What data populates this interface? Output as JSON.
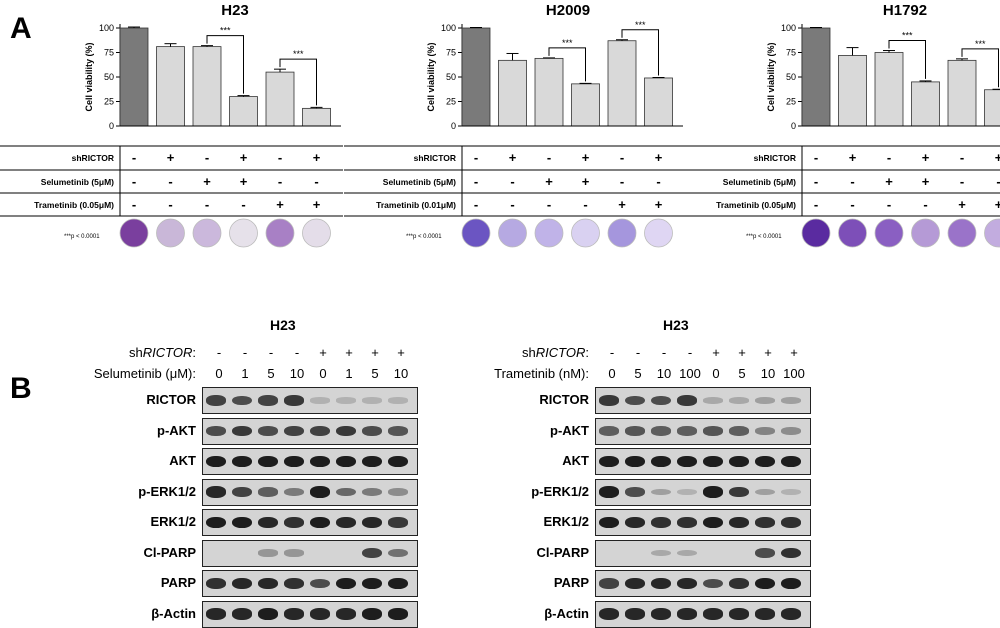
{
  "panel_a_label": "A",
  "panel_b_label": "B",
  "chart_data": [
    {
      "type": "bar",
      "title": "H23",
      "ylabel": "Cell viability (%)",
      "ylim": [
        0,
        100
      ],
      "yticks": [
        "0",
        "25",
        "50",
        "75",
        "100"
      ],
      "values": [
        100,
        81,
        81,
        30,
        55,
        18
      ],
      "errors": [
        1,
        3,
        1,
        1,
        3,
        1
      ],
      "bar_colors": [
        "#7a7a7a",
        "#d9d9d9",
        "#d9d9d9",
        "#d9d9d9",
        "#d9d9d9",
        "#d9d9d9"
      ],
      "significance": [
        {
          "from": 2,
          "to": 3,
          "label": "***"
        },
        {
          "from": 4,
          "to": 5,
          "label": "***"
        }
      ],
      "row_labels": [
        "shRICTOR",
        "Selumetinib (5μM)",
        "Trametinib (0.05μM)"
      ],
      "rows": [
        [
          "-",
          "+",
          "-",
          "+",
          "-",
          "+"
        ],
        [
          "-",
          "-",
          "+",
          "+",
          "-",
          "-"
        ],
        [
          "-",
          "-",
          "-",
          "-",
          "+",
          "+"
        ]
      ],
      "p_note": "***p < 0.0001",
      "well_colors": [
        "#7a3f9e",
        "#c9b7d8",
        "#cbb8dc",
        "#e6e1ea",
        "#a880c5",
        "#e4dde9"
      ]
    },
    {
      "type": "bar",
      "title": "H2009",
      "ylabel": "Cell viability (%)",
      "ylim": [
        0,
        100
      ],
      "yticks": [
        "0",
        "25",
        "50",
        "75",
        "100"
      ],
      "values": [
        100,
        67,
        69,
        43,
        87,
        49
      ],
      "errors": [
        0.5,
        7,
        0.5,
        0.5,
        1,
        0.5
      ],
      "bar_colors": [
        "#7a7a7a",
        "#d9d9d9",
        "#d9d9d9",
        "#d9d9d9",
        "#d9d9d9",
        "#d9d9d9"
      ],
      "significance": [
        {
          "from": 2,
          "to": 3,
          "label": "***"
        },
        {
          "from": 4,
          "to": 5,
          "label": "***"
        }
      ],
      "row_labels": [
        "shRICTOR",
        "Selumetinib (5μM)",
        "Trametinib (0.01μM)"
      ],
      "rows": [
        [
          "-",
          "+",
          "-",
          "+",
          "-",
          "+"
        ],
        [
          "-",
          "-",
          "+",
          "+",
          "-",
          "-"
        ],
        [
          "-",
          "-",
          "-",
          "-",
          "+",
          "+"
        ]
      ],
      "p_note": "***p < 0.0001",
      "well_colors": [
        "#6b55c2",
        "#b6a9e2",
        "#c0b3e8",
        "#d9d1f1",
        "#a596dd",
        "#dfd6f3"
      ]
    },
    {
      "type": "bar",
      "title": "H1792",
      "ylabel": "Cell viability (%)",
      "ylim": [
        0,
        100
      ],
      "yticks": [
        "0",
        "25",
        "50",
        "75",
        "100"
      ],
      "values": [
        100,
        72,
        75,
        45,
        67,
        37
      ],
      "errors": [
        0.5,
        8,
        2,
        1,
        1.5,
        0.5
      ],
      "bar_colors": [
        "#7a7a7a",
        "#d9d9d9",
        "#d9d9d9",
        "#d9d9d9",
        "#d9d9d9",
        "#d9d9d9"
      ],
      "significance": [
        {
          "from": 2,
          "to": 3,
          "label": "***"
        },
        {
          "from": 4,
          "to": 5,
          "label": "***"
        }
      ],
      "row_labels": [
        "shRICTOR",
        "Selumetinib (5μM)",
        "Trametinib (0.05μM)"
      ],
      "rows": [
        [
          "-",
          "+",
          "-",
          "+",
          "-",
          "+"
        ],
        [
          "-",
          "-",
          "+",
          "+",
          "-",
          "-"
        ],
        [
          "-",
          "-",
          "-",
          "-",
          "+",
          "+"
        ]
      ],
      "p_note": "***p < 0.0001",
      "well_colors": [
        "#5a2ba0",
        "#7d4fb8",
        "#8a5fc2",
        "#b59ad6",
        "#9a73c9",
        "#c2acdf"
      ]
    }
  ],
  "blots": [
    {
      "title": "H23",
      "shrictor_label_prefix": "sh",
      "shrictor_label_gene": "RICTOR",
      "shrictor_label_suffix": ":",
      "shrictor": [
        "-",
        "-",
        "-",
        "-",
        "+",
        "+",
        "+",
        "+"
      ],
      "drug_label": "Selumetinib (μM):",
      "doses": [
        "0",
        "1",
        "5",
        "10",
        "0",
        "1",
        "5",
        "10"
      ],
      "bands": [
        {
          "name": "RICTOR",
          "intensity": [
            0.75,
            0.7,
            0.75,
            0.8,
            0.15,
            0.15,
            0.15,
            0.15
          ]
        },
        {
          "name": "p-AKT",
          "intensity": [
            0.7,
            0.8,
            0.7,
            0.75,
            0.75,
            0.8,
            0.7,
            0.65
          ]
        },
        {
          "name": "AKT",
          "intensity": [
            0.95,
            0.95,
            0.95,
            0.95,
            0.95,
            0.95,
            0.95,
            0.95
          ]
        },
        {
          "name": "p-ERK1/2",
          "intensity": [
            0.9,
            0.75,
            0.6,
            0.45,
            0.95,
            0.55,
            0.45,
            0.35
          ]
        },
        {
          "name": "ERK1/2",
          "intensity": [
            0.95,
            0.95,
            0.9,
            0.85,
            0.95,
            0.9,
            0.9,
            0.8
          ]
        },
        {
          "name": "Cl-PARP",
          "intensity": [
            0,
            0,
            0.3,
            0.3,
            0,
            0,
            0.75,
            0.5
          ]
        },
        {
          "name": "PARP",
          "intensity": [
            0.85,
            0.9,
            0.9,
            0.85,
            0.7,
            0.95,
            0.95,
            0.95
          ]
        },
        {
          "name": "β-Actin",
          "intensity": [
            0.9,
            0.9,
            0.95,
            0.9,
            0.9,
            0.9,
            0.95,
            0.95
          ]
        }
      ]
    },
    {
      "title": "H23",
      "shrictor_label_prefix": "sh",
      "shrictor_label_gene": "RICTOR",
      "shrictor_label_suffix": ":",
      "shrictor": [
        "-",
        "-",
        "-",
        "-",
        "+",
        "+",
        "+",
        "+"
      ],
      "drug_label": "Trametinib (nM):",
      "doses": [
        "0",
        "5",
        "10",
        "100",
        "0",
        "5",
        "10",
        "100"
      ],
      "bands": [
        {
          "name": "RICTOR",
          "intensity": [
            0.8,
            0.7,
            0.7,
            0.8,
            0.2,
            0.2,
            0.25,
            0.25
          ]
        },
        {
          "name": "p-AKT",
          "intensity": [
            0.6,
            0.65,
            0.6,
            0.6,
            0.65,
            0.6,
            0.4,
            0.35
          ]
        },
        {
          "name": "AKT",
          "intensity": [
            0.95,
            0.95,
            0.95,
            0.95,
            0.95,
            0.95,
            0.95,
            0.95
          ]
        },
        {
          "name": "p-ERK1/2",
          "intensity": [
            0.95,
            0.7,
            0.25,
            0.15,
            0.95,
            0.8,
            0.25,
            0.15
          ]
        },
        {
          "name": "ERK1/2",
          "intensity": [
            0.95,
            0.9,
            0.85,
            0.85,
            0.95,
            0.9,
            0.85,
            0.85
          ]
        },
        {
          "name": "Cl-PARP",
          "intensity": [
            0,
            0,
            0.2,
            0.2,
            0,
            0,
            0.7,
            0.85
          ]
        },
        {
          "name": "PARP",
          "intensity": [
            0.75,
            0.9,
            0.9,
            0.9,
            0.7,
            0.85,
            0.95,
            0.95
          ]
        },
        {
          "name": "β-Actin",
          "intensity": [
            0.9,
            0.9,
            0.9,
            0.9,
            0.9,
            0.9,
            0.9,
            0.9
          ]
        }
      ]
    }
  ]
}
